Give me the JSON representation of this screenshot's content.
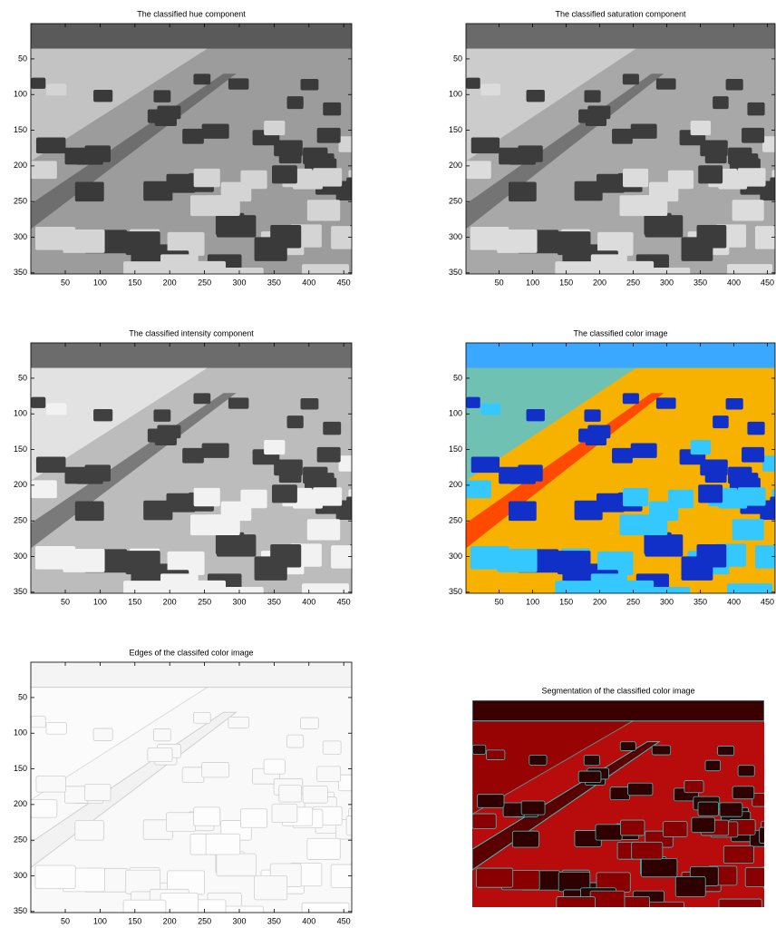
{
  "chart_data": [
    {
      "type": "image",
      "title": "The classified hue component",
      "xlim": [
        0.5,
        461.5
      ],
      "ylim": [
        0.5,
        351.5
      ],
      "xticks": [
        50,
        100,
        150,
        200,
        250,
        300,
        350,
        400,
        450
      ],
      "yticks": [
        50,
        100,
        150,
        200,
        250,
        300,
        350
      ]
    },
    {
      "type": "image",
      "title": "The classified saturation component",
      "xlim": [
        0.5,
        461.5
      ],
      "ylim": [
        0.5,
        351.5
      ],
      "xticks": [
        50,
        100,
        150,
        200,
        250,
        300,
        350,
        400,
        450
      ],
      "yticks": [
        50,
        100,
        150,
        200,
        250,
        300,
        350
      ]
    },
    {
      "type": "image",
      "title": "The classified intensity component",
      "xlim": [
        0.5,
        461.5
      ],
      "ylim": [
        0.5,
        351.5
      ],
      "xticks": [
        50,
        100,
        150,
        200,
        250,
        300,
        350,
        400,
        450
      ],
      "yticks": [
        50,
        100,
        150,
        200,
        250,
        300,
        350
      ]
    },
    {
      "type": "image",
      "title": "The classified color image",
      "xlim": [
        0.5,
        461.5
      ],
      "ylim": [
        0.5,
        351.5
      ],
      "xticks": [
        50,
        100,
        150,
        200,
        250,
        300,
        350,
        400,
        450
      ],
      "yticks": [
        50,
        100,
        150,
        200,
        250,
        300,
        350
      ]
    },
    {
      "type": "image",
      "title": "Edges of the classifed color image",
      "xlim": [
        0.5,
        461.5
      ],
      "ylim": [
        0.5,
        351.5
      ],
      "xticks": [
        50,
        100,
        150,
        200,
        250,
        300,
        350,
        400,
        450
      ],
      "yticks": [
        50,
        100,
        150,
        200,
        250,
        300,
        350
      ]
    },
    {
      "type": "image",
      "title": "Segmentation of the classified color image"
    }
  ]
}
